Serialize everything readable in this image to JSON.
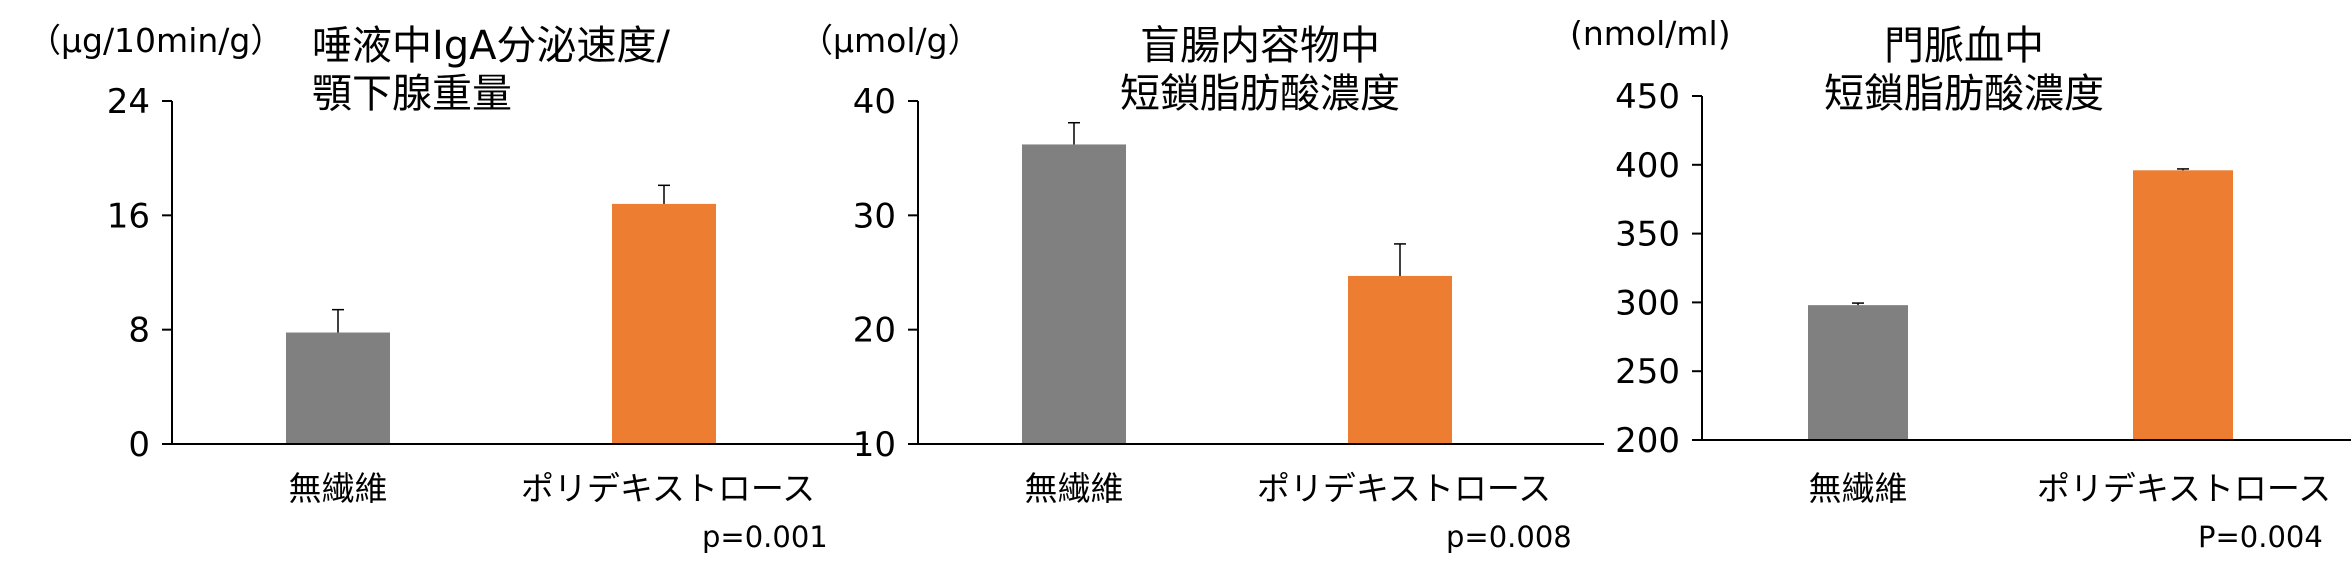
{
  "chart_data": [
    {
      "type": "bar",
      "unit_label": "（μg/10min/g）",
      "title_lines": [
        "唾液中IgA分泌速度/",
        "顎下腺重量"
      ],
      "categories": [
        "無繊維",
        "ポリデキストロース"
      ],
      "values": [
        7.8,
        16.8
      ],
      "errors": [
        1.6,
        1.3
      ],
      "colors": [
        "#808080",
        "#ED7D31"
      ],
      "ylim": [
        0,
        24
      ],
      "yticks": [
        "24",
        "16",
        "8",
        "0"
      ],
      "p_value": "p=0.001"
    },
    {
      "type": "bar",
      "unit_label": "（μmol/g）",
      "title_lines": [
        "盲腸内容物中",
        "短鎖脂肪酸濃度"
      ],
      "categories": [
        "無繊維",
        "ポリデキストロース"
      ],
      "values": [
        36.2,
        24.7
      ],
      "errors": [
        1.9,
        2.8
      ],
      "colors": [
        "#808080",
        "#ED7D31"
      ],
      "ylim": [
        10,
        40
      ],
      "yticks": [
        "40",
        "30",
        "20",
        "10"
      ],
      "p_value": "p=0.008"
    },
    {
      "type": "bar",
      "unit_label": "(nmol/ml)",
      "title_lines": [
        "門脈血中",
        "短鎖脂肪酸濃度"
      ],
      "categories": [
        "無繊維",
        "ポリデキストロース"
      ],
      "values": [
        298,
        396
      ],
      "errors": [
        1.5,
        1.0
      ],
      "colors": [
        "#808080",
        "#ED7D31"
      ],
      "ylim": [
        200,
        450
      ],
      "yticks": [
        "450",
        "400",
        "350",
        "300",
        "250",
        "200"
      ],
      "p_value": "P=0.004"
    }
  ]
}
